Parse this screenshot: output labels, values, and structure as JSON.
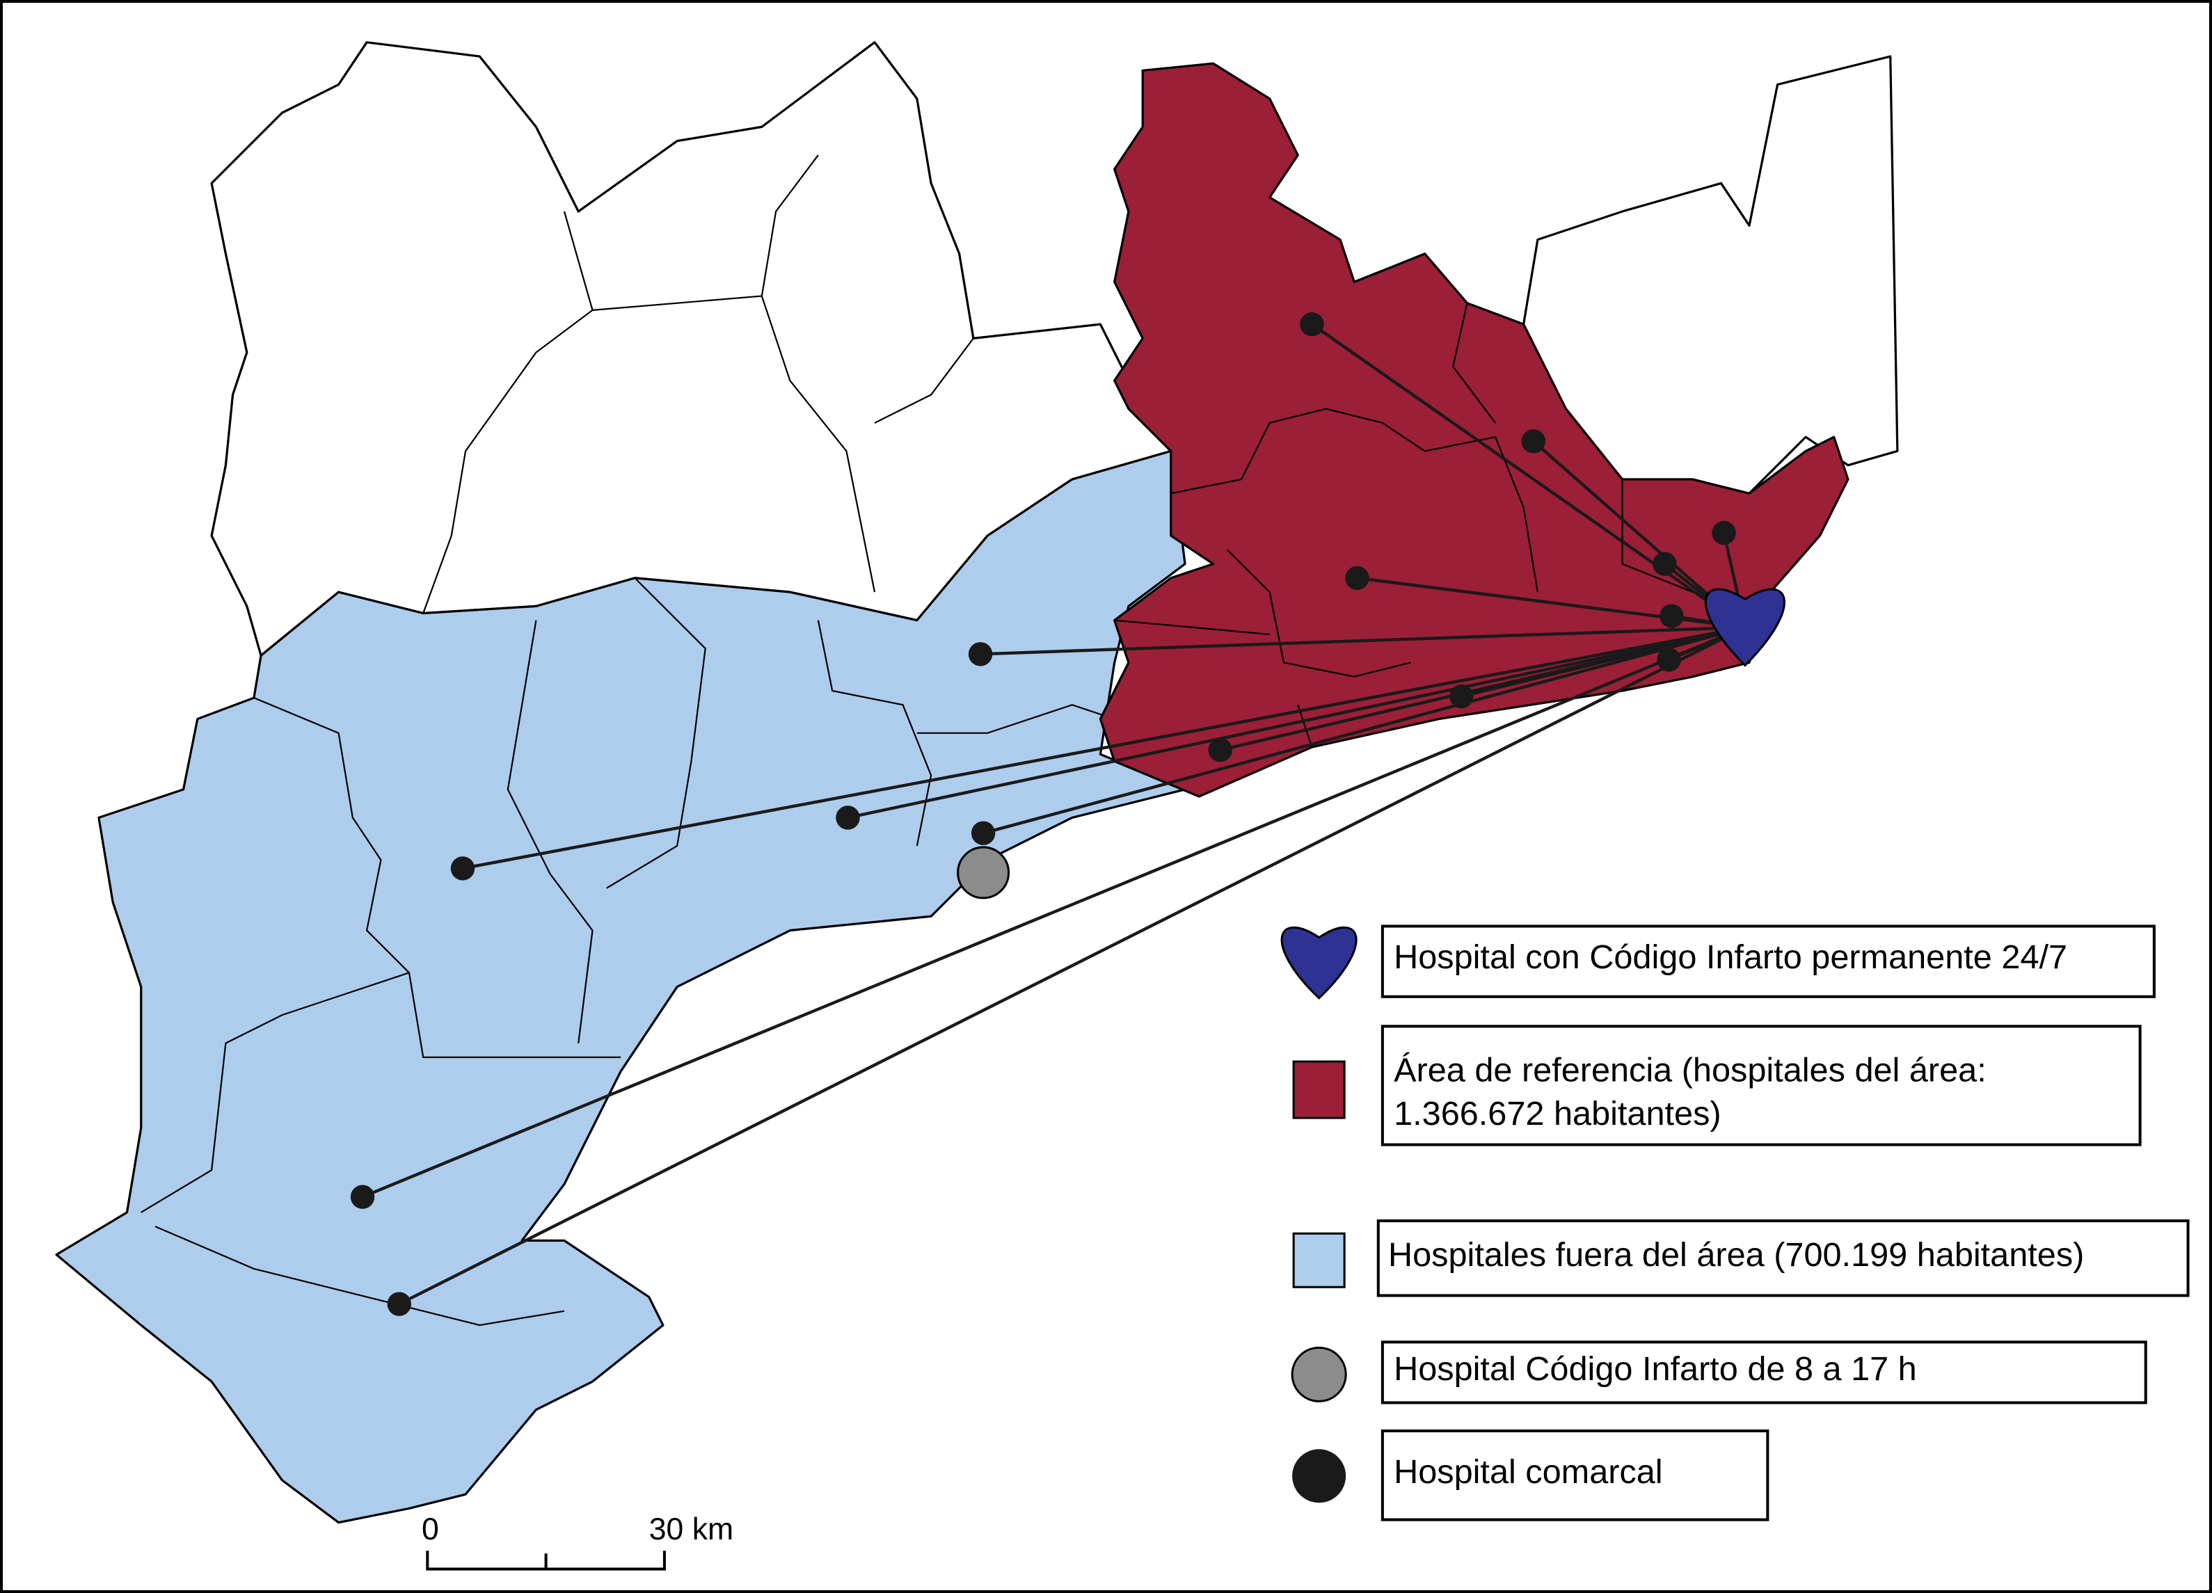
{
  "legend": {
    "items": [
      {
        "label": [
          "Hospital con Código Infarto permanente 24/7"
        ]
      },
      {
        "label": [
          "Área de referencia (hospitales del área:",
          "1.366.672 habitantes)"
        ]
      },
      {
        "label": [
          "Hospitales fuera del área (700.199 habitantes)"
        ]
      },
      {
        "label": [
          "Hospital Código Infarto de 8 a 17 h"
        ]
      },
      {
        "label": [
          "Hospital comarcal"
        ]
      }
    ]
  },
  "scale": {
    "labels": [
      "0",
      "30 km"
    ]
  }
}
